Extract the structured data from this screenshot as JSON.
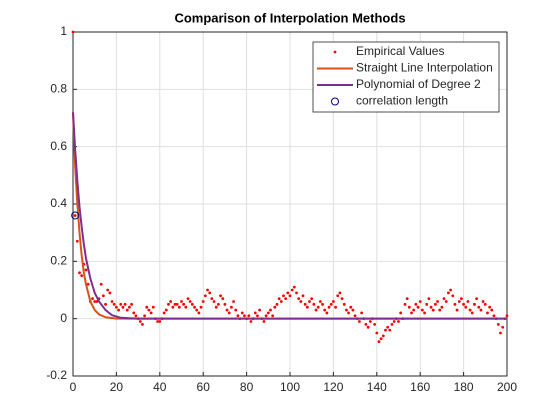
{
  "chart_data": {
    "type": "line",
    "title": "Comparison of Interpolation Methods",
    "xlim": [
      0,
      200
    ],
    "ylim": [
      -0.2,
      1
    ],
    "xticks": [
      0,
      20,
      40,
      60,
      80,
      100,
      120,
      140,
      160,
      180,
      200
    ],
    "yticks": [
      -0.2,
      0,
      0.2,
      0.4,
      0.6,
      0.8,
      1
    ],
    "grid": true,
    "legend": "northeast",
    "series": [
      {
        "name": "Empirical Values",
        "color": "#ff0000",
        "style": "dots",
        "x": [
          0,
          1,
          2,
          3,
          4,
          5,
          6,
          7,
          8,
          9,
          10,
          11,
          12,
          13,
          14,
          15,
          16,
          17,
          18,
          19,
          20,
          21,
          22,
          23,
          24,
          25,
          26,
          27,
          28,
          29,
          30,
          31,
          32,
          33,
          34,
          35,
          36,
          37,
          38,
          39,
          40,
          41,
          42,
          43,
          44,
          45,
          46,
          47,
          48,
          49,
          50,
          51,
          52,
          53,
          54,
          55,
          56,
          57,
          58,
          59,
          60,
          61,
          62,
          63,
          64,
          65,
          66,
          67,
          68,
          69,
          70,
          71,
          72,
          73,
          74,
          75,
          76,
          77,
          78,
          79,
          80,
          81,
          82,
          83,
          84,
          85,
          86,
          87,
          88,
          89,
          90,
          91,
          92,
          93,
          94,
          95,
          96,
          97,
          98,
          99,
          100,
          101,
          102,
          103,
          104,
          105,
          106,
          107,
          108,
          109,
          110,
          111,
          112,
          113,
          114,
          115,
          116,
          117,
          118,
          119,
          120,
          121,
          122,
          123,
          124,
          125,
          126,
          127,
          128,
          129,
          130,
          131,
          132,
          133,
          134,
          135,
          136,
          137,
          138,
          139,
          140,
          141,
          142,
          143,
          144,
          145,
          146,
          147,
          148,
          149,
          150,
          151,
          152,
          153,
          154,
          155,
          156,
          157,
          158,
          159,
          160,
          161,
          162,
          163,
          164,
          165,
          166,
          167,
          168,
          169,
          170,
          171,
          172,
          173,
          174,
          175,
          176,
          177,
          178,
          179,
          180,
          181,
          182,
          183,
          184,
          185,
          186,
          187,
          188,
          189,
          190,
          191,
          192,
          193,
          194,
          195,
          196,
          197,
          198,
          199,
          200
        ],
        "values": [
          1.0,
          0.36,
          0.27,
          0.16,
          0.15,
          0.19,
          0.17,
          0.12,
          0.06,
          0.07,
          0.06,
          0.06,
          0.07,
          0.12,
          0.08,
          0.05,
          0.1,
          0.09,
          0.06,
          0.05,
          0.04,
          0.03,
          0.05,
          0.04,
          0.05,
          0.03,
          0.04,
          0.05,
          0.02,
          0.01,
          0.0,
          -0.01,
          -0.02,
          0.01,
          0.04,
          0.03,
          0.02,
          0.04,
          0.0,
          -0.01,
          -0.01,
          0.0,
          0.02,
          0.03,
          0.05,
          0.06,
          0.04,
          0.05,
          0.05,
          0.04,
          0.06,
          0.05,
          0.04,
          0.07,
          0.06,
          0.05,
          0.04,
          0.03,
          0.02,
          0.04,
          0.06,
          0.08,
          0.1,
          0.09,
          0.07,
          0.06,
          0.04,
          0.05,
          0.08,
          0.07,
          0.05,
          0.03,
          0.02,
          0.04,
          0.06,
          0.03,
          0.01,
          0.0,
          0.02,
          0.01,
          0.0,
          0.01,
          -0.01,
          0.0,
          0.02,
          0.01,
          0.03,
          0.0,
          -0.01,
          0.01,
          0.02,
          0.03,
          0.01,
          0.04,
          0.05,
          0.07,
          0.06,
          0.08,
          0.07,
          0.09,
          0.08,
          0.1,
          0.11,
          0.09,
          0.07,
          0.06,
          0.08,
          0.05,
          0.04,
          0.06,
          0.07,
          0.05,
          0.03,
          0.04,
          0.06,
          0.05,
          0.03,
          0.02,
          0.04,
          0.05,
          0.06,
          0.04,
          0.08,
          0.09,
          0.07,
          0.05,
          0.03,
          0.02,
          0.04,
          0.03,
          0.01,
          0.0,
          -0.01,
          0.02,
          0.0,
          -0.02,
          -0.03,
          -0.01,
          0.0,
          -0.02,
          -0.05,
          -0.08,
          -0.07,
          -0.06,
          -0.04,
          -0.03,
          -0.04,
          -0.02,
          -0.01,
          0.0,
          -0.01,
          0.02,
          0.0,
          0.05,
          0.07,
          0.04,
          0.02,
          0.03,
          0.05,
          0.04,
          0.06,
          0.03,
          0.02,
          0.05,
          0.07,
          0.04,
          0.03,
          0.05,
          0.06,
          0.03,
          0.04,
          0.07,
          0.06,
          0.09,
          0.1,
          0.08,
          0.05,
          0.03,
          0.06,
          0.07,
          0.05,
          0.04,
          0.06,
          0.03,
          0.02,
          0.05,
          0.07,
          0.04,
          0.03,
          0.06,
          0.05,
          0.02,
          0.04,
          0.03,
          0.01,
          0.0,
          -0.02,
          -0.05,
          -0.03,
          0.0,
          0.01
        ]
      },
      {
        "name": "Straight Line Interpolation",
        "color": "#d95319",
        "style": "line",
        "x": [
          0,
          1,
          2,
          3,
          4,
          5,
          6,
          8,
          10,
          12,
          15,
          20,
          200
        ],
        "values": [
          0.72,
          0.53,
          0.4,
          0.3,
          0.22,
          0.16,
          0.12,
          0.06,
          0.03,
          0.015,
          0.005,
          0,
          0
        ]
      },
      {
        "name": "Polynomial of Degree 2",
        "color": "#7e2f8e",
        "style": "line",
        "x": [
          0,
          1,
          2,
          3,
          4,
          5,
          6,
          8,
          10,
          12,
          15,
          18,
          22,
          30,
          200
        ],
        "values": [
          0.72,
          0.59,
          0.48,
          0.39,
          0.32,
          0.26,
          0.21,
          0.14,
          0.09,
          0.06,
          0.03,
          0.012,
          0.003,
          0,
          0
        ]
      },
      {
        "name": "correlation length",
        "color": "#00007f",
        "style": "circle",
        "x": [
          1
        ],
        "values": [
          0.36
        ]
      }
    ]
  }
}
